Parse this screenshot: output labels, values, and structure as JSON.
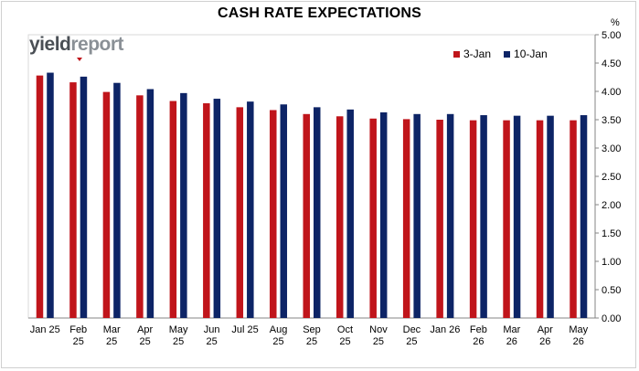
{
  "chart_data": {
    "type": "bar",
    "title": "CASH RATE EXPECTATIONS",
    "ylabel": "%",
    "ylim": [
      0,
      5
    ],
    "yticks": [
      "0.00",
      "0.50",
      "1.00",
      "1.50",
      "2.00",
      "2.50",
      "3.00",
      "3.50",
      "4.00",
      "4.50",
      "5.00"
    ],
    "grid": false,
    "legend_position": "top-right",
    "categories": [
      [
        "Jan 25"
      ],
      [
        "Feb",
        "25"
      ],
      [
        "Mar",
        "25"
      ],
      [
        "Apr",
        "25"
      ],
      [
        "May",
        "25"
      ],
      [
        "Jun",
        "25"
      ],
      [
        "Jul 25"
      ],
      [
        "Aug",
        "25"
      ],
      [
        "Sep",
        "25"
      ],
      [
        "Oct",
        "25"
      ],
      [
        "Nov",
        "25"
      ],
      [
        "Dec",
        "25"
      ],
      [
        "Jan 26"
      ],
      [
        "Feb",
        "26"
      ],
      [
        "Mar",
        "26"
      ],
      [
        "Apr",
        "26"
      ],
      [
        "May",
        "26"
      ]
    ],
    "series": [
      {
        "name": "3-Jan",
        "color": "#c0151b",
        "values": [
          4.28,
          4.16,
          3.99,
          3.93,
          3.83,
          3.79,
          3.72,
          3.67,
          3.6,
          3.56,
          3.52,
          3.51,
          3.5,
          3.49,
          3.49,
          3.49,
          3.49
        ]
      },
      {
        "name": "10-Jan",
        "color": "#0d2466",
        "values": [
          4.33,
          4.26,
          4.15,
          4.04,
          3.97,
          3.87,
          3.82,
          3.77,
          3.72,
          3.68,
          3.63,
          3.6,
          3.6,
          3.58,
          3.57,
          3.57,
          3.58
        ]
      }
    ]
  },
  "logo": {
    "part1": "yield",
    "part2": "report"
  }
}
